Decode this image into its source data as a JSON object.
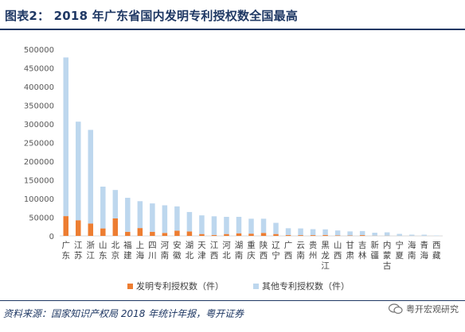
{
  "header": {
    "title": "图表2：  2018 年广东省国内发明专利授权数全国最高"
  },
  "colors": {
    "title": "#1f3864",
    "invention": "#ed7d31",
    "other": "#bdd7ee",
    "axis_text": "#595959"
  },
  "chart_data": {
    "type": "bar",
    "stacked": true,
    "categories": [
      "广东",
      "江苏",
      "浙江",
      "山东",
      "北京",
      "福建",
      "上海",
      "四川",
      "河南",
      "安徽",
      "湖北",
      "天津",
      "江西",
      "河北",
      "湖南",
      "重庆",
      "陕西",
      "辽宁",
      "广西",
      "云南",
      "贵州",
      "黑龙江",
      "山西",
      "甘肃",
      "吉林",
      "新疆",
      "内蒙古",
      "宁夏",
      "海南",
      "青海",
      "西藏"
    ],
    "series": [
      {
        "name": "发明专利授权数（件）",
        "values": [
          53000,
          42000,
          33000,
          20000,
          47000,
          11000,
          21000,
          11000,
          8000,
          14000,
          12000,
          5000,
          2500,
          5000,
          7000,
          6000,
          8000,
          5000,
          2500,
          2000,
          2000,
          2500,
          1500,
          1000,
          2000,
          500,
          500,
          300,
          300,
          200,
          50
        ]
      },
      {
        "name": "其他专利授权数（件）",
        "values": [
          425000,
          264000,
          251000,
          112000,
          76000,
          91000,
          72000,
          76000,
          74000,
          65000,
          52000,
          50000,
          50000,
          46000,
          44000,
          40000,
          38000,
          30000,
          18000,
          18000,
          16000,
          15000,
          13000,
          11000,
          11000,
          8000,
          9000,
          5000,
          3000,
          3000,
          1000
        ]
      }
    ],
    "yticks": [
      0,
      50000,
      100000,
      150000,
      200000,
      250000,
      300000,
      350000,
      400000,
      450000,
      500000
    ],
    "ylim": [
      0,
      500000
    ],
    "grid": false,
    "legend_position": "bottom"
  },
  "footer": {
    "source": "资料来源：国家知识产权局 2018 年统计年报，粤开证券",
    "watermark": "粤开宏观研究"
  }
}
